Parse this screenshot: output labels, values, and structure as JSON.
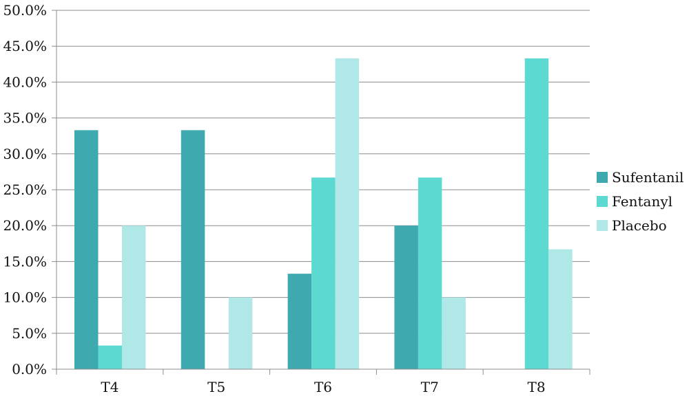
{
  "chart_data": {
    "type": "bar",
    "title": "",
    "xlabel": "",
    "ylabel": "",
    "categories": [
      "T4",
      "T5",
      "T6",
      "T7",
      "T8"
    ],
    "series": [
      {
        "name": "Sufentanil",
        "color": "#3fa9b0",
        "values": [
          33.3,
          33.3,
          13.3,
          20.0,
          0.0
        ]
      },
      {
        "name": "Fentanyl",
        "color": "#5cd9d1",
        "values": [
          3.3,
          0.0,
          26.7,
          26.7,
          43.3
        ]
      },
      {
        "name": "Placebo",
        "color": "#b0e8e8",
        "values": [
          20.0,
          10.0,
          43.3,
          10.0,
          16.7
        ]
      }
    ],
    "ylim": [
      0,
      50
    ],
    "yticks": [
      0,
      5,
      10,
      15,
      20,
      25,
      30,
      35,
      40,
      45,
      50
    ],
    "ytick_labels": [
      "0.0%",
      "5.0%",
      "10.0%",
      "15.0%",
      "20.0%",
      "25.0%",
      "30.0%",
      "35.0%",
      "40.0%",
      "45.0%",
      "50.0%"
    ],
    "grid": true,
    "legend_position": "right"
  }
}
